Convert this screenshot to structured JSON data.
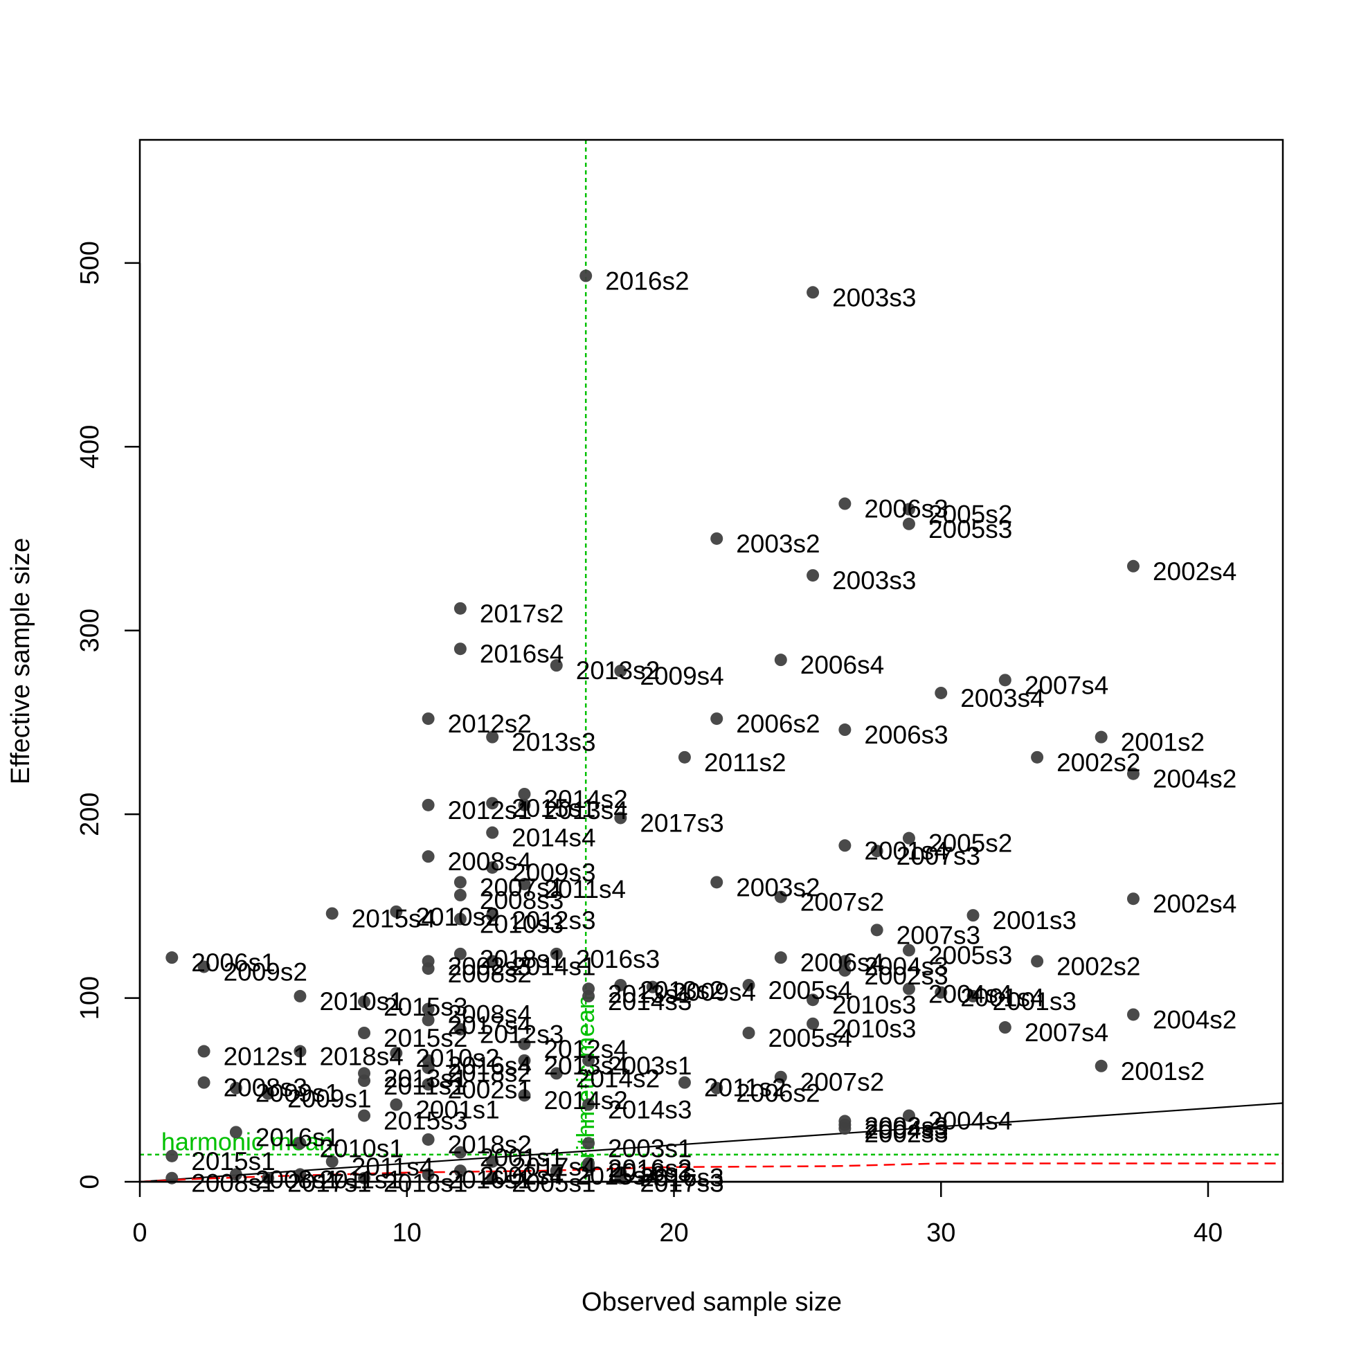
{
  "chart_data": {
    "type": "scatter",
    "title": "",
    "xlabel": "Observed sample size",
    "ylabel": "Effective sample size",
    "xlim": [
      0,
      42.8
    ],
    "ylim": [
      0,
      567
    ],
    "x_ticks": [
      0,
      10,
      20,
      30,
      40
    ],
    "y_ticks": [
      0,
      100,
      200,
      300,
      400,
      500
    ],
    "grid": false,
    "legend": "none",
    "colors": {
      "points": "#404040",
      "one_to_one_line": "#000000",
      "reference_lines": "#00c000",
      "smoother": "#ff0000"
    },
    "reference_lines": {
      "harmonic_mean": {
        "label": "harmonic mean",
        "y": 14.8
      },
      "arithmetic_mean": {
        "label": "arithmetic mean",
        "x": 16.7
      }
    },
    "one_to_one_line": {
      "from": [
        0,
        0
      ],
      "to": [
        42.8,
        42.8
      ]
    },
    "smoother": [
      [
        0,
        0
      ],
      [
        2,
        1.5
      ],
      [
        5,
        3
      ],
      [
        10,
        5
      ],
      [
        15,
        6
      ],
      [
        20,
        8
      ],
      [
        26,
        8.5
      ],
      [
        30,
        10
      ],
      [
        36,
        10
      ],
      [
        42.8,
        10
      ]
    ],
    "points": [
      {
        "x": 16.7,
        "y": 493,
        "label": "2016s2"
      },
      {
        "x": 25.2,
        "y": 484,
        "label": "2003s3"
      },
      {
        "x": 26.4,
        "y": 369,
        "label": "2006s3"
      },
      {
        "x": 28.8,
        "y": 366,
        "label": "2005s2"
      },
      {
        "x": 28.8,
        "y": 358,
        "label": "2005s3"
      },
      {
        "x": 21.6,
        "y": 350,
        "label": "2003s2"
      },
      {
        "x": 37.2,
        "y": 335,
        "label": "2002s4"
      },
      {
        "x": 25.2,
        "y": 330,
        "label": "2003s3"
      },
      {
        "x": 12.0,
        "y": 312,
        "label": "2017s2"
      },
      {
        "x": 12.0,
        "y": 290,
        "label": "2016s4"
      },
      {
        "x": 24.0,
        "y": 284,
        "label": "2006s4"
      },
      {
        "x": 15.6,
        "y": 281,
        "label": "2013s2"
      },
      {
        "x": 18.0,
        "y": 278,
        "label": "2009s4"
      },
      {
        "x": 32.4,
        "y": 273,
        "label": "2007s4"
      },
      {
        "x": 30.0,
        "y": 266,
        "label": "2003s4"
      },
      {
        "x": 10.8,
        "y": 252,
        "label": "2012s2"
      },
      {
        "x": 21.6,
        "y": 252,
        "label": "2006s2"
      },
      {
        "x": 26.4,
        "y": 246,
        "label": "2006s3"
      },
      {
        "x": 13.2,
        "y": 242,
        "label": "2013s3"
      },
      {
        "x": 36.0,
        "y": 242,
        "label": "2001s2"
      },
      {
        "x": 20.4,
        "y": 231,
        "label": "2011s2"
      },
      {
        "x": 33.6,
        "y": 231,
        "label": "2002s2"
      },
      {
        "x": 37.2,
        "y": 222,
        "label": "2004s2"
      },
      {
        "x": 14.4,
        "y": 211,
        "label": "2014s2"
      },
      {
        "x": 13.2,
        "y": 206,
        "label": "2015s1"
      },
      {
        "x": 10.8,
        "y": 205,
        "label": "2012s1"
      },
      {
        "x": 14.4,
        "y": 205,
        "label": "2013s4"
      },
      {
        "x": 18.0,
        "y": 198,
        "label": "2017s3"
      },
      {
        "x": 13.2,
        "y": 190,
        "label": "2014s4"
      },
      {
        "x": 28.8,
        "y": 187,
        "label": "2005s2"
      },
      {
        "x": 26.4,
        "y": 183,
        "label": "2001s4"
      },
      {
        "x": 27.6,
        "y": 180,
        "label": "2007s3"
      },
      {
        "x": 10.8,
        "y": 177,
        "label": "2008s4"
      },
      {
        "x": 13.2,
        "y": 171,
        "label": "2009s3"
      },
      {
        "x": 21.6,
        "y": 163,
        "label": "2003s2"
      },
      {
        "x": 12.0,
        "y": 163,
        "label": "2007s1"
      },
      {
        "x": 14.4,
        "y": 162,
        "label": "2011s4"
      },
      {
        "x": 12.0,
        "y": 156,
        "label": "2008s3"
      },
      {
        "x": 24.0,
        "y": 155,
        "label": "2007s2"
      },
      {
        "x": 37.2,
        "y": 154,
        "label": "2002s4"
      },
      {
        "x": 9.6,
        "y": 147,
        "label": "2010s2"
      },
      {
        "x": 7.2,
        "y": 146,
        "label": "2015s4"
      },
      {
        "x": 13.2,
        "y": 145,
        "label": "2012s3"
      },
      {
        "x": 31.2,
        "y": 145,
        "label": "2001s3"
      },
      {
        "x": 12.0,
        "y": 143,
        "label": "2010s3"
      },
      {
        "x": 27.6,
        "y": 137,
        "label": "2007s3"
      },
      {
        "x": 28.8,
        "y": 126,
        "label": "2005s3"
      },
      {
        "x": 12.0,
        "y": 124,
        "label": "2018s1"
      },
      {
        "x": 15.6,
        "y": 124,
        "label": "2016s3"
      },
      {
        "x": 1.2,
        "y": 122,
        "label": "2006s1"
      },
      {
        "x": 24.0,
        "y": 122,
        "label": "2006s4"
      },
      {
        "x": 10.8,
        "y": 120,
        "label": "2002s3"
      },
      {
        "x": 13.2,
        "y": 120,
        "label": "2014s1"
      },
      {
        "x": 26.4,
        "y": 120,
        "label": "2004s3"
      },
      {
        "x": 33.6,
        "y": 120,
        "label": "2002s2"
      },
      {
        "x": 2.4,
        "y": 117,
        "label": "2009s2"
      },
      {
        "x": 10.8,
        "y": 116,
        "label": "2008s2"
      },
      {
        "x": 26.4,
        "y": 115,
        "label": "2002s3"
      },
      {
        "x": 22.8,
        "y": 107,
        "label": "2005s4"
      },
      {
        "x": 18.0,
        "y": 107,
        "label": "2013s2"
      },
      {
        "x": 19.2,
        "y": 106,
        "label": "2009s4"
      },
      {
        "x": 16.8,
        "y": 105,
        "label": "2013s1"
      },
      {
        "x": 28.8,
        "y": 105,
        "label": "2004s4"
      },
      {
        "x": 30.0,
        "y": 103,
        "label": "2001s4"
      },
      {
        "x": 16.8,
        "y": 101,
        "label": "2014s3"
      },
      {
        "x": 31.2,
        "y": 101,
        "label": "2001s3"
      },
      {
        "x": 6.0,
        "y": 101,
        "label": "2010s1"
      },
      {
        "x": 25.2,
        "y": 99,
        "label": "2010s3"
      },
      {
        "x": 8.4,
        "y": 98,
        "label": "2015s3"
      },
      {
        "x": 10.8,
        "y": 94,
        "label": "2008s4"
      },
      {
        "x": 37.2,
        "y": 91,
        "label": "2004s2"
      },
      {
        "x": 10.8,
        "y": 88,
        "label": "2017s4"
      },
      {
        "x": 25.2,
        "y": 86,
        "label": "2010s3"
      },
      {
        "x": 32.4,
        "y": 84,
        "label": "2007s4"
      },
      {
        "x": 12.0,
        "y": 83,
        "label": "2012s3"
      },
      {
        "x": 8.4,
        "y": 81,
        "label": "2015s2"
      },
      {
        "x": 22.8,
        "y": 81,
        "label": "2005s4"
      },
      {
        "x": 14.4,
        "y": 75,
        "label": "2012s4"
      },
      {
        "x": 2.4,
        "y": 71,
        "label": "2012s1"
      },
      {
        "x": 6.0,
        "y": 71,
        "label": "2018s4"
      },
      {
        "x": 9.6,
        "y": 70,
        "label": "2010s2"
      },
      {
        "x": 10.8,
        "y": 66,
        "label": "2016s4"
      },
      {
        "x": 14.4,
        "y": 66,
        "label": "2013s4"
      },
      {
        "x": 16.8,
        "y": 66,
        "label": "2003s1"
      },
      {
        "x": 36.0,
        "y": 63,
        "label": "2001s2"
      },
      {
        "x": 10.8,
        "y": 62,
        "label": "2018s2"
      },
      {
        "x": 8.4,
        "y": 59,
        "label": "2013s1"
      },
      {
        "x": 15.6,
        "y": 59,
        "label": "2014s2"
      },
      {
        "x": 24.0,
        "y": 57,
        "label": "2007s2"
      },
      {
        "x": 8.4,
        "y": 55,
        "label": "2011s1"
      },
      {
        "x": 20.4,
        "y": 54,
        "label": "2011s2"
      },
      {
        "x": 2.4,
        "y": 54,
        "label": "2008s3"
      },
      {
        "x": 10.8,
        "y": 53,
        "label": "2002s1"
      },
      {
        "x": 3.6,
        "y": 51,
        "label": "2009s1"
      },
      {
        "x": 21.6,
        "y": 51,
        "label": "2006s2"
      },
      {
        "x": 4.8,
        "y": 48,
        "label": "2009s1"
      },
      {
        "x": 14.4,
        "y": 47,
        "label": "2014s2"
      },
      {
        "x": 9.6,
        "y": 42,
        "label": "2001s1"
      },
      {
        "x": 16.8,
        "y": 42,
        "label": "2014s3"
      },
      {
        "x": 8.4,
        "y": 36,
        "label": "2015s3"
      },
      {
        "x": 28.8,
        "y": 36,
        "label": "2004s4"
      },
      {
        "x": 26.4,
        "y": 33,
        "label": "2002s3"
      },
      {
        "x": 26.4,
        "y": 31,
        "label": "2004s3"
      },
      {
        "x": 26.4,
        "y": 29,
        "label": "2002s3"
      },
      {
        "x": 3.6,
        "y": 27,
        "label": "2016s1"
      },
      {
        "x": 10.8,
        "y": 23,
        "label": "2018s2"
      },
      {
        "x": 6.0,
        "y": 21,
        "label": "2010s1"
      },
      {
        "x": 16.8,
        "y": 21,
        "label": "2003s1"
      },
      {
        "x": 12.0,
        "y": 16,
        "label": "2001s1"
      },
      {
        "x": 1.2,
        "y": 14,
        "label": "2015s1"
      },
      {
        "x": 7.2,
        "y": 11,
        "label": "2011s4"
      },
      {
        "x": 13.2,
        "y": 11,
        "label": "2017s4"
      },
      {
        "x": 16.8,
        "y": 10,
        "label": "2016s2"
      },
      {
        "x": 16.8,
        "y": 8,
        "label": "2018s3"
      },
      {
        "x": 12.0,
        "y": 6,
        "label": "2002s4"
      },
      {
        "x": 15.6,
        "y": 6,
        "label": "2015s4"
      },
      {
        "x": 18.0,
        "y": 5,
        "label": "2016s3"
      },
      {
        "x": 3.6,
        "y": 4,
        "label": "2008s1"
      },
      {
        "x": 6.0,
        "y": 4,
        "label": "2011s1"
      },
      {
        "x": 10.8,
        "y": 4,
        "label": "2016s1"
      },
      {
        "x": 1.2,
        "y": 2,
        "label": "2008s1"
      },
      {
        "x": 4.8,
        "y": 2,
        "label": "2017s1"
      },
      {
        "x": 8.4,
        "y": 2,
        "label": "2018s1"
      },
      {
        "x": 13.2,
        "y": 2,
        "label": "2005s1"
      },
      {
        "x": 18.0,
        "y": 2,
        "label": "2017s3"
      }
    ]
  }
}
